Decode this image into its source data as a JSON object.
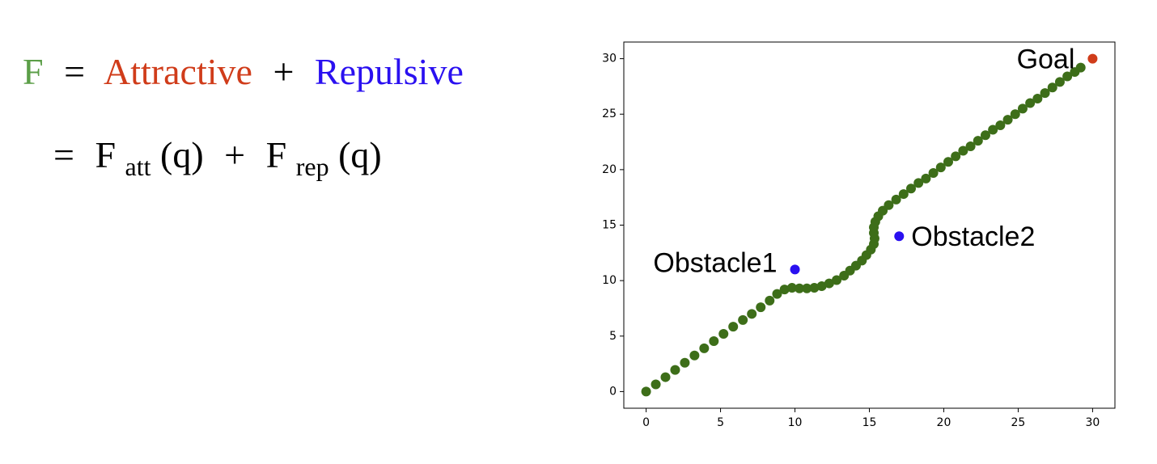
{
  "formula": {
    "line1": [
      {
        "text": "F",
        "color": "#5b9e47"
      },
      {
        "text": "=",
        "color": "#000000"
      },
      {
        "text": "Attractive",
        "color": "#d03c1a"
      },
      {
        "text": "+",
        "color": "#000000"
      },
      {
        "text": "Repulsive",
        "color": "#2a10f0"
      }
    ],
    "line2": [
      "=",
      "F",
      "att",
      "(q)",
      "+",
      "F",
      "rep",
      "(q)"
    ]
  },
  "chart_data": {
    "type": "scatter",
    "xlim": [
      -1.5,
      31.5
    ],
    "ylim": [
      -1.5,
      31.5
    ],
    "xticks": [
      0,
      5,
      10,
      15,
      20,
      25,
      30
    ],
    "yticks": [
      0,
      5,
      10,
      15,
      20,
      25,
      30
    ],
    "grid": false,
    "series": [
      {
        "color": "#3d6e19",
        "x": [
          0,
          0.65,
          1.3,
          1.95,
          2.6,
          3.25,
          3.9,
          4.55,
          5.2,
          5.85,
          6.5,
          7.1,
          7.7,
          8.3,
          8.8,
          9.3,
          9.8,
          10.3,
          10.8,
          11.3,
          11.8,
          12.3,
          12.8,
          13.3,
          13.7,
          14.1,
          14.5,
          14.8,
          15.1,
          15.3,
          15.35,
          15.3,
          15.3,
          15.4,
          15.6,
          15.9,
          16.3,
          16.8,
          17.3,
          17.8,
          18.3,
          18.8,
          19.3,
          19.8,
          20.3,
          20.8,
          21.3,
          21.8,
          22.3,
          22.8,
          23.3,
          23.8,
          24.3,
          24.8,
          25.3,
          25.8,
          26.3,
          26.8,
          27.3,
          27.8,
          28.3,
          28.8,
          29.2
        ],
        "values": [
          0,
          0.65,
          1.3,
          1.95,
          2.6,
          3.25,
          3.9,
          4.55,
          5.2,
          5.85,
          6.45,
          7.0,
          7.6,
          8.2,
          8.8,
          9.2,
          9.35,
          9.3,
          9.3,
          9.35,
          9.5,
          9.75,
          10.05,
          10.45,
          10.9,
          11.35,
          11.8,
          12.3,
          12.8,
          13.3,
          13.8,
          14.3,
          14.8,
          15.3,
          15.8,
          16.3,
          16.8,
          17.3,
          17.8,
          18.3,
          18.8,
          19.2,
          19.7,
          20.2,
          20.7,
          21.2,
          21.7,
          22.1,
          22.6,
          23.1,
          23.6,
          24.0,
          24.5,
          25.0,
          25.5,
          26.0,
          26.4,
          26.9,
          27.4,
          27.9,
          28.4,
          28.8,
          29.2
        ]
      },
      {
        "color": "#2a10f0",
        "x": [
          10,
          17
        ],
        "values": [
          11,
          14
        ],
        "labels": [
          "Obstacle1",
          "Obstacle2"
        ]
      },
      {
        "color": "#d03c1a",
        "x": [
          30
        ],
        "values": [
          30
        ],
        "labels": [
          "Goal"
        ]
      }
    ]
  }
}
